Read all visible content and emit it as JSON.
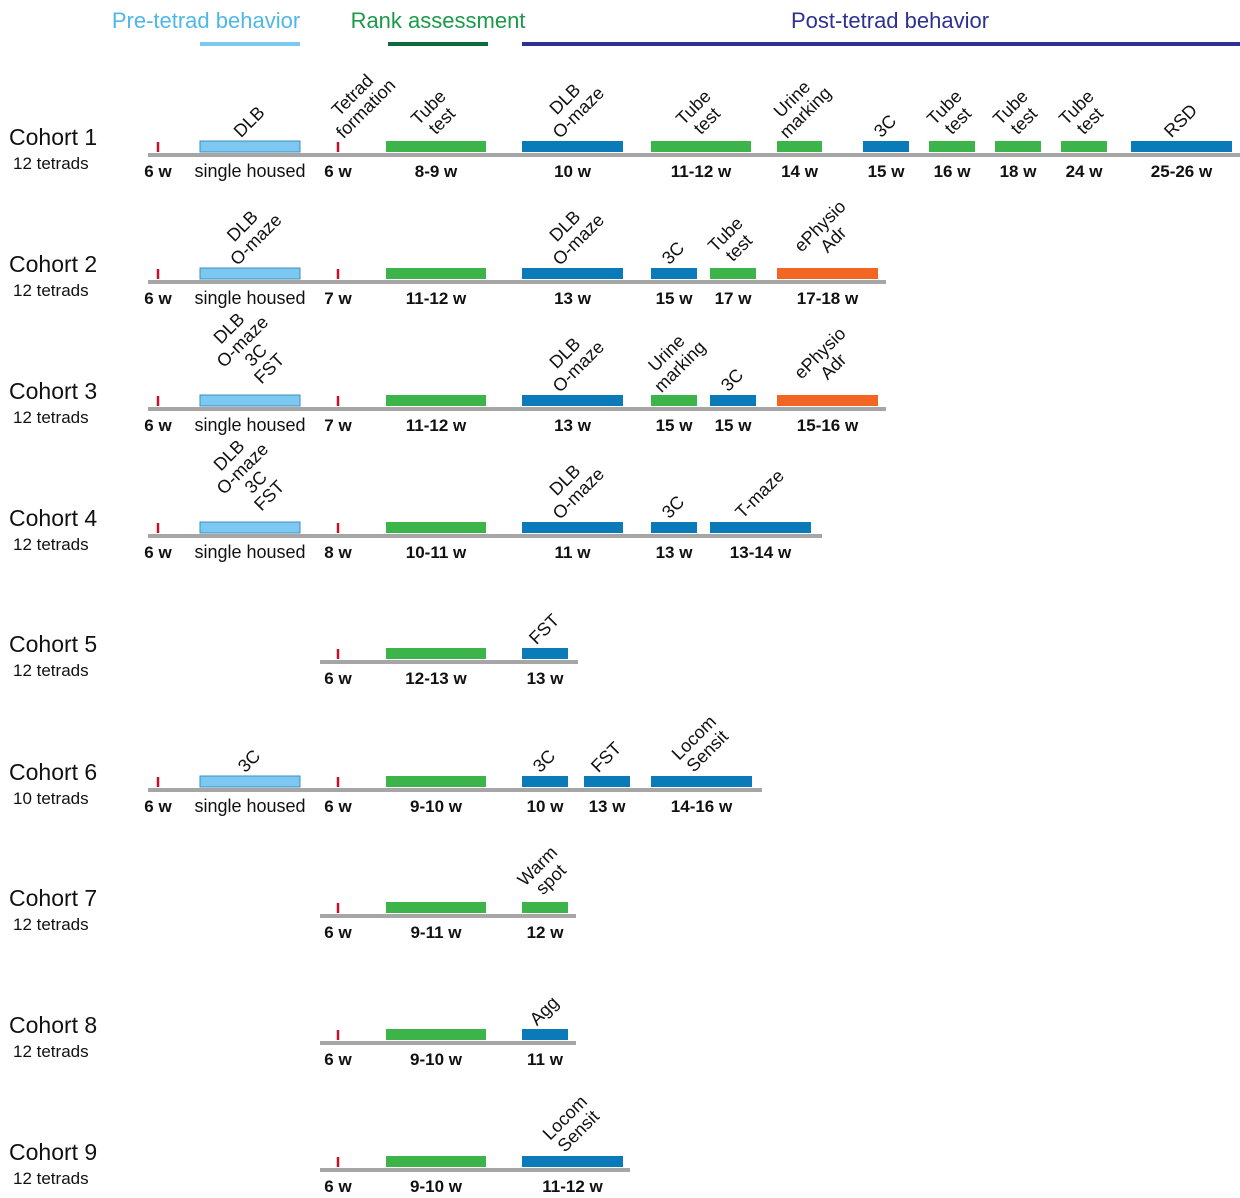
{
  "legend": [
    {
      "label": "Pre-tetrad behavior",
      "color": "#4fb8e8",
      "bar_color": "#7dc8f0"
    },
    {
      "label": "Rank assessment",
      "color": "#1a9a4a",
      "bar_color": "#0b6b3a"
    },
    {
      "label": "Post-tetrad behavior",
      "color": "#2e3192",
      "bar_color": "#2e3192"
    }
  ],
  "cohorts": [
    {
      "name": "Cohort 1",
      "size": "12 tetrads",
      "items": [
        {
          "type": "tick",
          "color": "#c8102e",
          "week": "6 w"
        },
        {
          "type": "box",
          "color": "#7dc8f0",
          "labels": [
            "DLB"
          ],
          "week": "single housed"
        },
        {
          "type": "tick",
          "color": "#c8102e",
          "labels": [
            "Tetrad",
            "formation"
          ],
          "week": "6 w"
        },
        {
          "type": "box",
          "color": "#3cb44a",
          "labels": [
            "Tube",
            "test"
          ],
          "week": "8-9 w"
        },
        {
          "type": "box",
          "color": "#0a7ab8",
          "labels": [
            "DLB",
            "O-maze"
          ],
          "week": "10 w"
        },
        {
          "type": "box",
          "color": "#3cb44a",
          "labels": [
            "Tube",
            "test"
          ],
          "week": "11-12 w"
        },
        {
          "type": "box",
          "color": "#3cb44a",
          "labels": [
            "Urine",
            "marking"
          ],
          "week": "14 w"
        },
        {
          "type": "box",
          "color": "#0a7ab8",
          "labels": [
            "3C"
          ],
          "week": "15 w"
        },
        {
          "type": "box",
          "color": "#3cb44a",
          "labels": [
            "Tube",
            "test"
          ],
          "week": "16 w"
        },
        {
          "type": "box",
          "color": "#3cb44a",
          "labels": [
            "Tube",
            "test"
          ],
          "week": "18 w"
        },
        {
          "type": "box",
          "color": "#3cb44a",
          "labels": [
            "Tube",
            "test"
          ],
          "week": "24 w"
        },
        {
          "type": "box",
          "color": "#0a7ab8",
          "labels": [
            "RSD"
          ],
          "week": "25-26 w"
        }
      ]
    },
    {
      "name": "Cohort 2",
      "size": "12 tetrads",
      "items": [
        {
          "type": "tick",
          "color": "#c8102e",
          "week": "6 w"
        },
        {
          "type": "box",
          "color": "#7dc8f0",
          "labels": [
            "DLB",
            "O-maze"
          ],
          "week": "single housed"
        },
        {
          "type": "tick",
          "color": "#c8102e",
          "week": "7 w"
        },
        {
          "type": "box",
          "color": "#3cb44a",
          "week": "11-12 w"
        },
        {
          "type": "box",
          "color": "#0a7ab8",
          "labels": [
            "DLB",
            "O-maze"
          ],
          "week": "13 w"
        },
        {
          "type": "box",
          "color": "#0a7ab8",
          "labels": [
            "3C"
          ],
          "week": "15 w"
        },
        {
          "type": "box",
          "color": "#3cb44a",
          "labels": [
            "Tube",
            "test"
          ],
          "week": "17 w"
        },
        {
          "type": "box",
          "color": "#f26522",
          "labels": [
            "ePhysio",
            "Adr"
          ],
          "week": "17-18 w"
        }
      ]
    },
    {
      "name": "Cohort 3",
      "size": "12 tetrads",
      "items": [
        {
          "type": "tick",
          "color": "#c8102e",
          "week": "6 w"
        },
        {
          "type": "box",
          "color": "#7dc8f0",
          "labels": [
            "DLB",
            "O-maze",
            "3C",
            "FST"
          ],
          "week": "single housed"
        },
        {
          "type": "tick",
          "color": "#c8102e",
          "week": "7 w"
        },
        {
          "type": "box",
          "color": "#3cb44a",
          "week": "11-12 w"
        },
        {
          "type": "box",
          "color": "#0a7ab8",
          "labels": [
            "DLB",
            "O-maze"
          ],
          "week": "13 w"
        },
        {
          "type": "box",
          "color": "#3cb44a",
          "labels": [
            "Urine",
            "marking"
          ],
          "week": "15 w"
        },
        {
          "type": "box",
          "color": "#0a7ab8",
          "labels": [
            "3C"
          ],
          "week": "15 w"
        },
        {
          "type": "box",
          "color": "#f26522",
          "labels": [
            "ePhysio",
            "Adr"
          ],
          "week": "15-16 w"
        }
      ]
    },
    {
      "name": "Cohort 4",
      "size": "12 tetrads",
      "items": [
        {
          "type": "tick",
          "color": "#c8102e",
          "week": "6 w"
        },
        {
          "type": "box",
          "color": "#7dc8f0",
          "labels": [
            "DLB",
            "O-maze",
            "3C",
            "FST"
          ],
          "week": "single housed"
        },
        {
          "type": "tick",
          "color": "#c8102e",
          "week": "8 w"
        },
        {
          "type": "box",
          "color": "#3cb44a",
          "week": "10-11 w"
        },
        {
          "type": "box",
          "color": "#0a7ab8",
          "labels": [
            "DLB",
            "O-maze"
          ],
          "week": "11 w"
        },
        {
          "type": "box",
          "color": "#0a7ab8",
          "labels": [
            "3C"
          ],
          "week": "13 w"
        },
        {
          "type": "box",
          "color": "#0a7ab8",
          "labels": [
            "T-maze"
          ],
          "week": "13-14 w"
        }
      ]
    },
    {
      "name": "Cohort 5",
      "size": "12 tetrads",
      "items": [
        {
          "type": "tick",
          "color": "#c8102e",
          "week": "6 w"
        },
        {
          "type": "box",
          "color": "#3cb44a",
          "week": "12-13 w"
        },
        {
          "type": "box",
          "color": "#0a7ab8",
          "labels": [
            "FST"
          ],
          "week": "13 w"
        }
      ]
    },
    {
      "name": "Cohort 6",
      "size": "10 tetrads",
      "items": [
        {
          "type": "tick",
          "color": "#c8102e",
          "week": "6 w"
        },
        {
          "type": "box",
          "color": "#7dc8f0",
          "labels": [
            "3C"
          ],
          "week": "single housed"
        },
        {
          "type": "tick",
          "color": "#c8102e",
          "week": "6 w"
        },
        {
          "type": "box",
          "color": "#3cb44a",
          "week": "9-10 w"
        },
        {
          "type": "box",
          "color": "#0a7ab8",
          "labels": [
            "3C"
          ],
          "week": "10 w"
        },
        {
          "type": "box",
          "color": "#0a7ab8",
          "labels": [
            "FST"
          ],
          "week": "13 w"
        },
        {
          "type": "box",
          "color": "#0a7ab8",
          "labels": [
            "Locom",
            "Sensit"
          ],
          "week": "14-16 w"
        }
      ]
    },
    {
      "name": "Cohort 7",
      "size": "12 tetrads",
      "items": [
        {
          "type": "tick",
          "color": "#c8102e",
          "week": "6 w"
        },
        {
          "type": "box",
          "color": "#3cb44a",
          "week": "9-11 w"
        },
        {
          "type": "box",
          "color": "#3cb44a",
          "labels": [
            "Warm",
            "spot"
          ],
          "week": "12 w"
        }
      ]
    },
    {
      "name": "Cohort 8",
      "size": "12 tetrads",
      "items": [
        {
          "type": "tick",
          "color": "#c8102e",
          "week": "6 w"
        },
        {
          "type": "box",
          "color": "#3cb44a",
          "week": "9-10 w"
        },
        {
          "type": "box",
          "color": "#0a7ab8",
          "labels": [
            "Agg"
          ],
          "week": "11 w"
        }
      ]
    },
    {
      "name": "Cohort 9",
      "size": "12 tetrads",
      "items": [
        {
          "type": "tick",
          "color": "#c8102e",
          "week": "6 w"
        },
        {
          "type": "box",
          "color": "#3cb44a",
          "week": "9-10 w"
        },
        {
          "type": "box",
          "color": "#0a7ab8",
          "labels": [
            "Locom",
            "Sensit"
          ],
          "week": "11-12 w"
        }
      ]
    }
  ]
}
